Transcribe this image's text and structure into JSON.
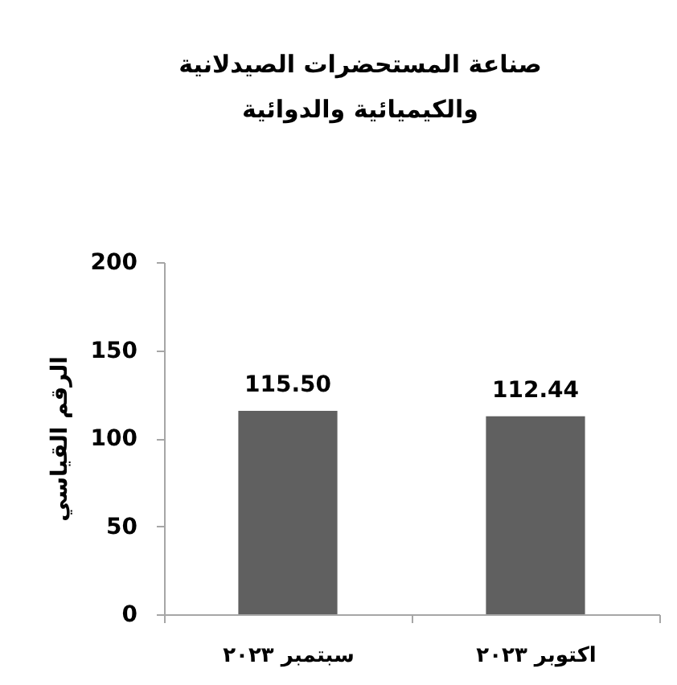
{
  "chart_data": {
    "type": "bar",
    "title": "صناعة المستحضرات الصيدلانية\nوالكيميائية والدوائية",
    "ylabel": "الرقم القياسي",
    "categories": [
      "سبتمبر ٢٠٢٣",
      "اكتوبر ٢٠٢٣"
    ],
    "values": [
      115.5,
      112.44
    ],
    "value_labels": [
      "115.50",
      "112.44"
    ],
    "color": "#606060",
    "ylim": [
      0,
      200
    ],
    "yticks": [
      0,
      50,
      100,
      150,
      200
    ],
    "grid": false
  }
}
